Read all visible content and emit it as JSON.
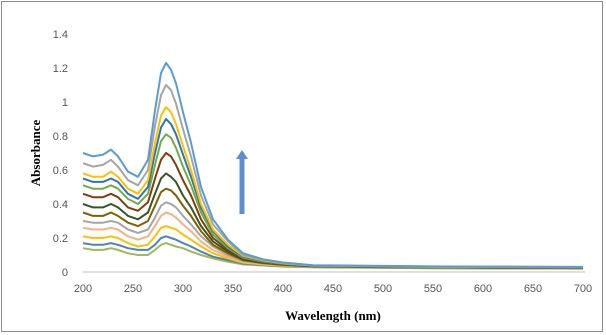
{
  "chart_data": {
    "type": "line",
    "title": "",
    "xlabel": "Wavelength (nm)",
    "ylabel": "Absorbance",
    "xlim": [
      200,
      700
    ],
    "ylim": [
      0,
      1.4
    ],
    "x_ticks": [
      "200",
      "250",
      "300",
      "350",
      "400",
      "450",
      "500",
      "550",
      "600",
      "650",
      "700"
    ],
    "y_ticks": [
      "0",
      "0.2",
      "0.4",
      "0.6",
      "0.8",
      "1",
      "1.2",
      "1.4"
    ],
    "grid": false,
    "legend": "none",
    "annotation": {
      "type": "arrow",
      "direction": "up",
      "meaning": "absorbance increases across the series",
      "color": "#5b8fd0"
    },
    "x": [
      200,
      210,
      220,
      228,
      235,
      245,
      255,
      265,
      272,
      278,
      283,
      288,
      293,
      300,
      308,
      318,
      330,
      345,
      360,
      380,
      400,
      430,
      460,
      500,
      550,
      600,
      650,
      700
    ],
    "series": [
      {
        "color": "#9bbb59",
        "values": [
          0.14,
          0.13,
          0.13,
          0.14,
          0.13,
          0.11,
          0.1,
          0.1,
          0.13,
          0.16,
          0.17,
          0.16,
          0.15,
          0.14,
          0.12,
          0.1,
          0.08,
          0.06,
          0.045,
          0.038,
          0.032,
          0.028,
          0.026,
          0.024,
          0.022,
          0.021,
          0.02,
          0.02
        ]
      },
      {
        "color": "#4f81bd",
        "values": [
          0.17,
          0.16,
          0.16,
          0.17,
          0.16,
          0.14,
          0.13,
          0.13,
          0.16,
          0.2,
          0.21,
          0.2,
          0.19,
          0.17,
          0.15,
          0.12,
          0.09,
          0.07,
          0.05,
          0.041,
          0.034,
          0.029,
          0.027,
          0.025,
          0.023,
          0.022,
          0.021,
          0.02
        ]
      },
      {
        "color": "#ffc000",
        "values": [
          0.21,
          0.2,
          0.2,
          0.21,
          0.2,
          0.17,
          0.15,
          0.16,
          0.21,
          0.26,
          0.27,
          0.26,
          0.25,
          0.22,
          0.19,
          0.15,
          0.11,
          0.08,
          0.055,
          0.044,
          0.036,
          0.03,
          0.028,
          0.026,
          0.024,
          0.023,
          0.022,
          0.021
        ]
      },
      {
        "color": "#f4b183",
        "values": [
          0.26,
          0.25,
          0.25,
          0.26,
          0.25,
          0.21,
          0.19,
          0.21,
          0.27,
          0.33,
          0.35,
          0.34,
          0.32,
          0.28,
          0.24,
          0.18,
          0.13,
          0.09,
          0.06,
          0.047,
          0.038,
          0.031,
          0.029,
          0.027,
          0.025,
          0.024,
          0.022,
          0.021
        ]
      },
      {
        "color": "#a5a5a5",
        "values": [
          0.3,
          0.29,
          0.29,
          0.3,
          0.29,
          0.25,
          0.23,
          0.25,
          0.32,
          0.39,
          0.41,
          0.4,
          0.38,
          0.33,
          0.28,
          0.21,
          0.15,
          0.1,
          0.065,
          0.05,
          0.04,
          0.032,
          0.03,
          0.028,
          0.026,
          0.025,
          0.023,
          0.022
        ]
      },
      {
        "color": "#7f6000",
        "values": [
          0.35,
          0.33,
          0.33,
          0.35,
          0.33,
          0.29,
          0.27,
          0.3,
          0.39,
          0.47,
          0.49,
          0.48,
          0.45,
          0.39,
          0.33,
          0.24,
          0.16,
          0.11,
          0.07,
          0.053,
          0.042,
          0.033,
          0.031,
          0.029,
          0.027,
          0.025,
          0.024,
          0.023
        ]
      },
      {
        "color": "#375623",
        "values": [
          0.4,
          0.38,
          0.38,
          0.4,
          0.38,
          0.33,
          0.31,
          0.35,
          0.46,
          0.55,
          0.58,
          0.56,
          0.53,
          0.45,
          0.38,
          0.27,
          0.18,
          0.12,
          0.075,
          0.056,
          0.044,
          0.034,
          0.032,
          0.03,
          0.028,
          0.026,
          0.025,
          0.024
        ]
      },
      {
        "color": "#843c0c",
        "values": [
          0.46,
          0.44,
          0.44,
          0.46,
          0.44,
          0.38,
          0.36,
          0.41,
          0.55,
          0.66,
          0.7,
          0.68,
          0.63,
          0.54,
          0.45,
          0.31,
          0.2,
          0.13,
          0.08,
          0.059,
          0.046,
          0.035,
          0.033,
          0.031,
          0.028,
          0.027,
          0.026,
          0.025
        ]
      },
      {
        "color": "#70ad47",
        "values": [
          0.51,
          0.49,
          0.49,
          0.51,
          0.49,
          0.43,
          0.4,
          0.46,
          0.63,
          0.77,
          0.81,
          0.79,
          0.73,
          0.62,
          0.51,
          0.35,
          0.22,
          0.14,
          0.085,
          0.062,
          0.048,
          0.036,
          0.034,
          0.032,
          0.029,
          0.028,
          0.027,
          0.026
        ]
      },
      {
        "color": "#2e75b6",
        "values": [
          0.55,
          0.53,
          0.53,
          0.55,
          0.53,
          0.46,
          0.43,
          0.5,
          0.7,
          0.85,
          0.9,
          0.87,
          0.81,
          0.69,
          0.56,
          0.38,
          0.24,
          0.15,
          0.09,
          0.065,
          0.05,
          0.037,
          0.035,
          0.033,
          0.03,
          0.029,
          0.028,
          0.027
        ]
      },
      {
        "color": "#ffc000",
        "values": [
          0.58,
          0.56,
          0.56,
          0.59,
          0.56,
          0.49,
          0.46,
          0.54,
          0.76,
          0.92,
          0.97,
          0.94,
          0.87,
          0.74,
          0.6,
          0.4,
          0.25,
          0.16,
          0.095,
          0.068,
          0.052,
          0.038,
          0.036,
          0.034,
          0.031,
          0.03,
          0.029,
          0.028
        ]
      },
      {
        "color": "#a5a5a5",
        "values": [
          0.64,
          0.62,
          0.63,
          0.66,
          0.62,
          0.54,
          0.51,
          0.6,
          0.86,
          1.04,
          1.1,
          1.07,
          0.99,
          0.84,
          0.68,
          0.45,
          0.28,
          0.18,
          0.1,
          0.071,
          0.054,
          0.039,
          0.037,
          0.035,
          0.032,
          0.031,
          0.03,
          0.029
        ]
      },
      {
        "color": "#5b9bd5",
        "values": [
          0.7,
          0.68,
          0.69,
          0.72,
          0.68,
          0.59,
          0.56,
          0.66,
          0.95,
          1.17,
          1.23,
          1.19,
          1.11,
          0.94,
          0.76,
          0.5,
          0.31,
          0.19,
          0.11,
          0.075,
          0.056,
          0.04,
          0.038,
          0.036,
          0.033,
          0.032,
          0.031,
          0.03
        ]
      }
    ]
  }
}
